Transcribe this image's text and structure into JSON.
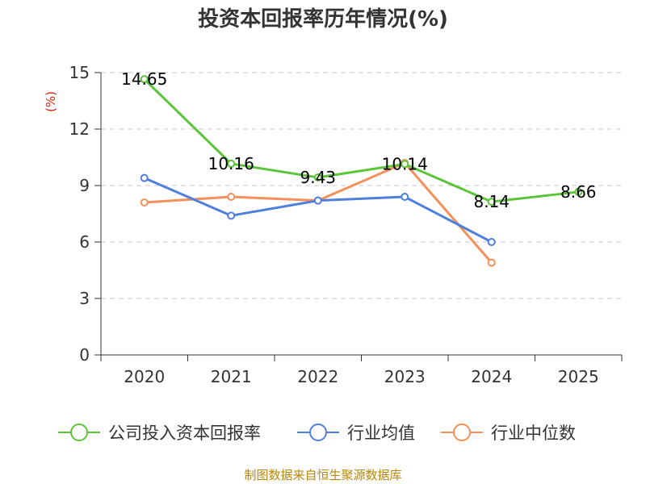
{
  "chart_data": {
    "type": "line",
    "title": "投资本回报率历年情况(%)",
    "ylabel": "(%)",
    "xlabel": "",
    "categories": [
      "2020",
      "2021",
      "2022",
      "2023",
      "2024",
      "2025"
    ],
    "ylim": [
      0,
      15
    ],
    "yticks": [
      0,
      3,
      6,
      9,
      12,
      15
    ],
    "grid": true,
    "legend_position": "bottom",
    "series": [
      {
        "name": "公司投入资本回报率",
        "color": "#5cc43a",
        "values": [
          14.65,
          10.16,
          9.43,
          10.14,
          8.14,
          8.66
        ],
        "labels": [
          "14.65",
          "10.16",
          "9.43",
          "10.14",
          "8.14",
          "8.66"
        ]
      },
      {
        "name": "行业均值",
        "color": "#4f7fdd",
        "values": [
          9.4,
          7.4,
          8.2,
          8.4,
          6.0,
          null
        ]
      },
      {
        "name": "行业中位数",
        "color": "#f5905a",
        "values": [
          8.1,
          8.4,
          8.2,
          10.2,
          4.9,
          null
        ]
      }
    ]
  },
  "source": "制图数据来自恒生聚源数据库"
}
